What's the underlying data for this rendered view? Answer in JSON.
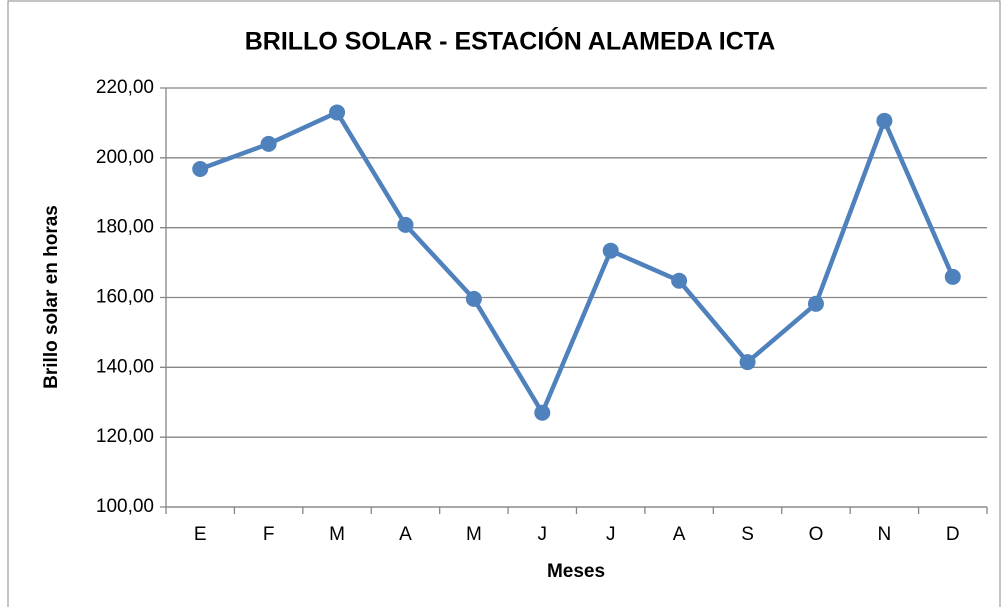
{
  "chart_data": {
    "type": "line",
    "title": "BRILLO SOLAR - ESTACIÓN ALAMEDA ICTA",
    "x_label": "Meses",
    "y_label": "Brillo solar en horas",
    "categories": [
      "E",
      "F",
      "M",
      "A",
      "M",
      "J",
      "J",
      "A",
      "S",
      "O",
      "N",
      "D"
    ],
    "series": [
      {
        "name": "Brillo solar",
        "color": "#4f81bd",
        "values": [
          196.8,
          204,
          213,
          180.8,
          159.6,
          127,
          173.4,
          164.8,
          141.5,
          158.2,
          210.6,
          165.9
        ]
      }
    ],
    "ylim": [
      100,
      220
    ],
    "yticks": [
      {
        "value": 100,
        "label": "100,00"
      },
      {
        "value": 120,
        "label": "120,00"
      },
      {
        "value": 140,
        "label": "140,00"
      },
      {
        "value": 160,
        "label": "160,00"
      },
      {
        "value": 180,
        "label": "180,00"
      },
      {
        "value": 200,
        "label": "200,00"
      },
      {
        "value": 220,
        "label": "220,00"
      }
    ],
    "grid": true
  }
}
